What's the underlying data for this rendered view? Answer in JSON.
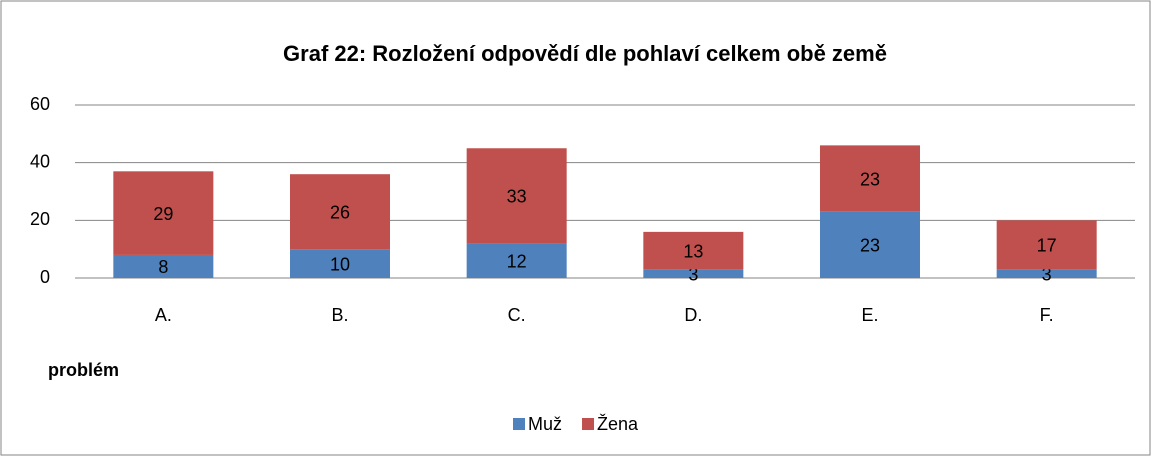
{
  "chart_data": {
    "type": "bar",
    "stacked": true,
    "title": "Graf 22: Rozložení odpovědí dle pohlaví celkem obě země",
    "x_label": "problém",
    "categories": [
      "A.",
      "B.",
      "C.",
      "D.",
      "E.",
      "F."
    ],
    "series": [
      {
        "name": "Muž",
        "color": "#4f81bd",
        "values": [
          8,
          10,
          12,
          3,
          23,
          3
        ]
      },
      {
        "name": "Žena",
        "color": "#c0504d",
        "values": [
          29,
          26,
          33,
          13,
          23,
          17
        ]
      }
    ],
    "ylim": [
      0,
      60
    ],
    "yticks": [
      0,
      20,
      40,
      60
    ],
    "grid": true,
    "legend": "bottom"
  }
}
